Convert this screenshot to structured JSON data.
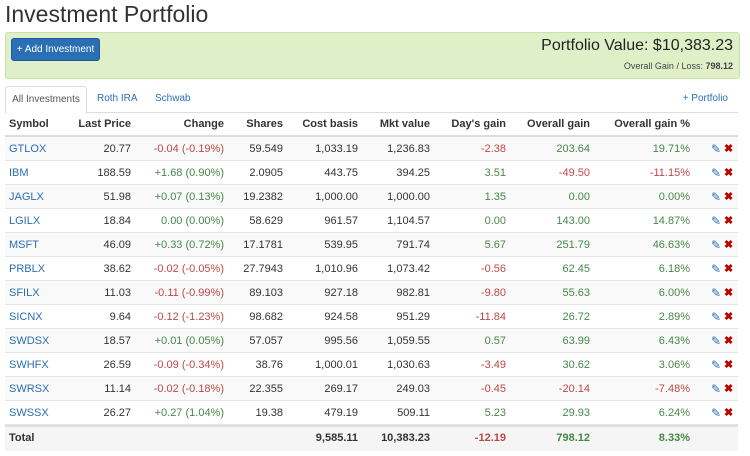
{
  "header": {
    "title": "Investment Portfolio"
  },
  "banner": {
    "button": "+ Add Investment",
    "portfolio_value": "Portfolio Value: $10,383.23",
    "gain_label": "Overall Gain / Loss:",
    "gain_value": "798.12"
  },
  "tabs": [
    "All Investments",
    "Roth IRA",
    "Schwab"
  ],
  "add_portfolio": "+ Portfolio",
  "table": {
    "columns": [
      "Symbol",
      "Last Price",
      "Change",
      "Shares",
      "Cost basis",
      "Mkt value",
      "Day's gain",
      "Overall gain",
      "Overall gain %"
    ],
    "rows": [
      [
        "GTLOX",
        "20.77",
        "-0.04 (-0.19%)",
        "59.549",
        "1,033.19",
        "1,236.83",
        "-2.38",
        "203.64",
        "19.71%"
      ],
      [
        "IBM",
        "188.59",
        "+1.68 (0.90%)",
        "2.0905",
        "443.75",
        "394.25",
        "3.51",
        "-49.50",
        "-11.15%"
      ],
      [
        "JAGLX",
        "51.98",
        "+0.07 (0.13%)",
        "19.2382",
        "1,000.00",
        "1,000.00",
        "1.35",
        "0.00",
        "0.00%"
      ],
      [
        "LGILX",
        "18.84",
        "0.00 (0.00%)",
        "58.629",
        "961.57",
        "1,104.57",
        "0.00",
        "143.00",
        "14.87%"
      ],
      [
        "MSFT",
        "46.09",
        "+0.33 (0.72%)",
        "17.1781",
        "539.95",
        "791.74",
        "5.67",
        "251.79",
        "46.63%"
      ],
      [
        "PRBLX",
        "38.62",
        "-0.02 (-0.05%)",
        "27.7943",
        "1,010.96",
        "1,073.42",
        "-0.56",
        "62.45",
        "6.18%"
      ],
      [
        "SFILX",
        "11.03",
        "-0.11 (-0.99%)",
        "89.103",
        "927.18",
        "982.81",
        "-9.80",
        "55.63",
        "6.00%"
      ],
      [
        "SICNX",
        "9.64",
        "-0.12 (-1.23%)",
        "98.682",
        "924.58",
        "951.29",
        "-11.84",
        "26.72",
        "2.89%"
      ],
      [
        "SWDSX",
        "18.57",
        "+0.01 (0.05%)",
        "57.057",
        "995.56",
        "1,059.55",
        "0.57",
        "63.99",
        "6.43%"
      ],
      [
        "SWHFX",
        "26.59",
        "-0.09 (-0.34%)",
        "38.76",
        "1,000.01",
        "1,030.63",
        "-3.49",
        "30.62",
        "3.06%"
      ],
      [
        "SWRSX",
        "11.14",
        "-0.02 (-0.18%)",
        "22.355",
        "269.17",
        "249.03",
        "-0.45",
        "-20.14",
        "-7.48%"
      ],
      [
        "SWSSX",
        "26.27",
        "+0.27 (1.04%)",
        "19.38",
        "479.19",
        "509.11",
        "5.23",
        "29.93",
        "6.24%"
      ]
    ],
    "total": {
      "label": "Total",
      "cost_basis": "9,585.11",
      "mkt_value": "10,383.23",
      "days_gain": "-12.19",
      "overall_gain": "798.12",
      "overall_gain_pct": "8.33%"
    }
  }
}
